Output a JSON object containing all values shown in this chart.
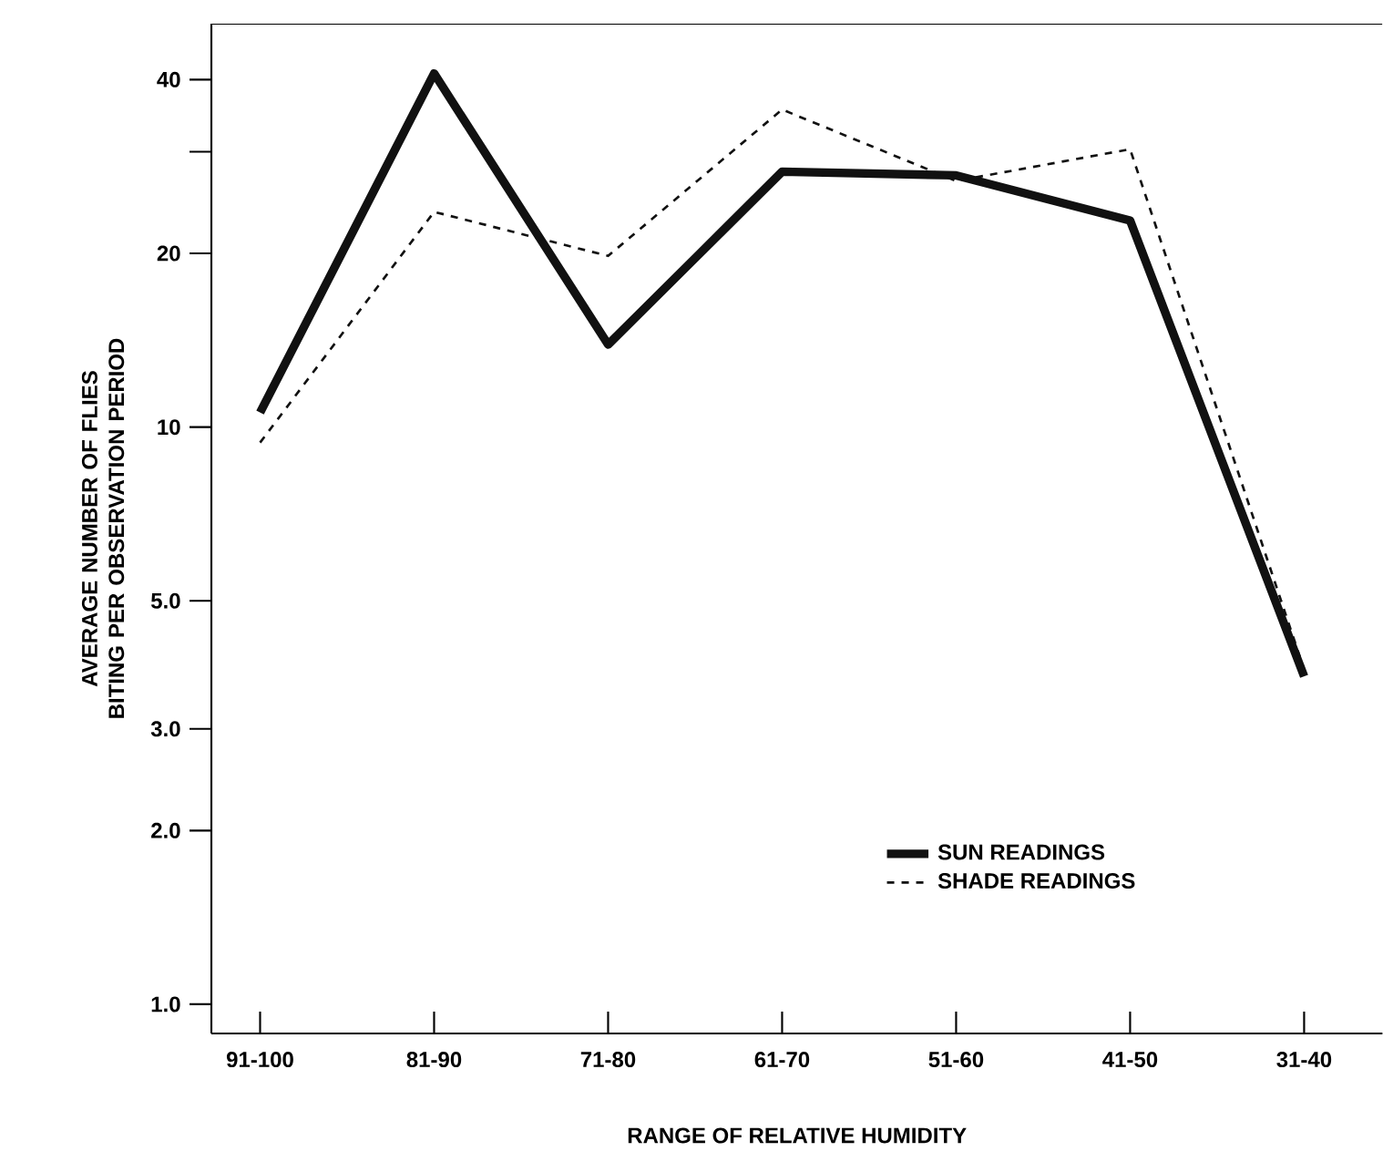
{
  "chart_data": {
    "type": "line",
    "xlabel": "RANGE OF RELATIVE HUMIDITY",
    "ylabel": "AVERAGE NUMBER OF FLIES BITING PER OBSERVATION PERIOD",
    "categories": [
      "91-100",
      "81-90",
      "71-80",
      "61-70",
      "51-60",
      "41-50",
      "31-40"
    ],
    "series": [
      {
        "name": "SUN READINGS",
        "color": "#111111",
        "line_style": "solid",
        "values": [
          10.6,
          41,
          13.9,
          27.7,
          27.3,
          22.8,
          3.7
        ]
      },
      {
        "name": "SHADE READINGS",
        "color": "#111111",
        "line_style": "dashed",
        "values": [
          9.4,
          23.6,
          19.8,
          35.5,
          26.7,
          30.3,
          3.8
        ]
      }
    ],
    "log": "y",
    "ylim": [
      0.89,
      50
    ],
    "yticks": [
      {
        "value": 1,
        "label": "1.0"
      },
      {
        "value": 2,
        "label": "2.0"
      },
      {
        "value": 3,
        "label": "3.0"
      },
      {
        "value": 5,
        "label": "5.0"
      },
      10,
      20,
      {
        "value": 30,
        "label": null
      },
      40
    ],
    "grid": false,
    "legend": "bottom right",
    "marker": "none"
  }
}
